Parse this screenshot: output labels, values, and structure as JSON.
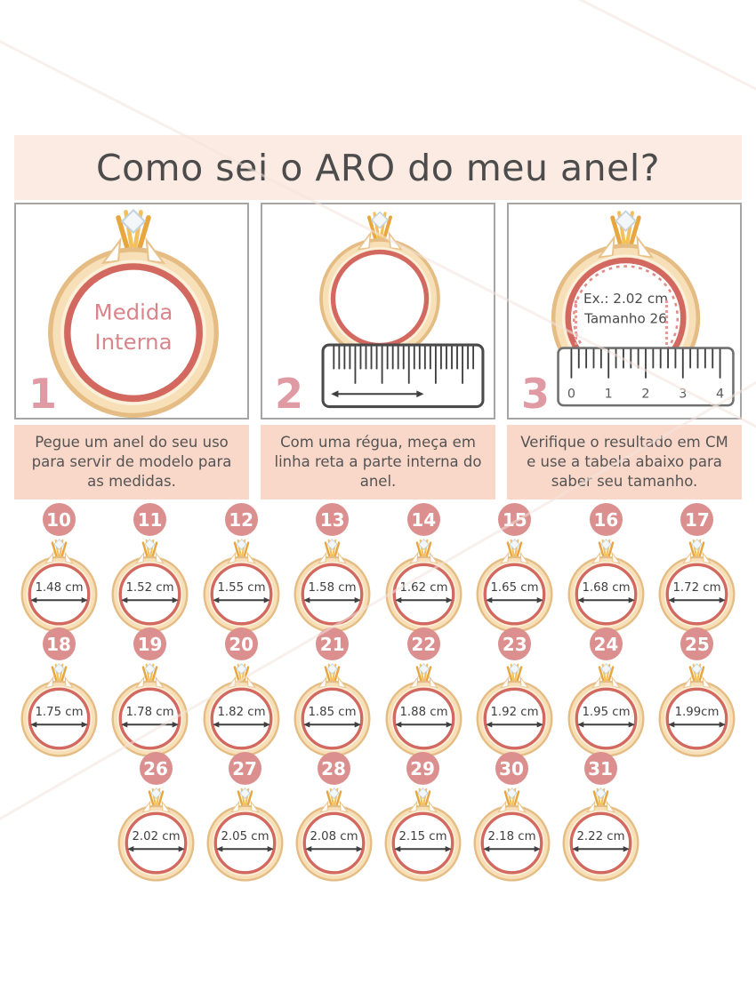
{
  "title": "Como sei o ARO do meu anel?",
  "steps": [
    {
      "number": "1",
      "ring_text_line1": "Medida",
      "ring_text_line2": "Interna",
      "caption": "Pegue um anel do seu uso para servir de modelo para as medidas."
    },
    {
      "number": "2",
      "caption": "Com uma régua, meça em linha reta a parte interna do anel."
    },
    {
      "number": "3",
      "example_line1": "Ex.: 2.02 cm",
      "example_line2": "Tamanho 26",
      "ruler_numbers": [
        "0",
        "1",
        "2",
        "3",
        "4"
      ],
      "caption": "Verifique o resultado em CM e use a tabela abaixo para saber seu tamanho."
    }
  ],
  "size_rows": [
    [
      {
        "size": "10",
        "measure": "1.48 cm"
      },
      {
        "size": "11",
        "measure": "1.52 cm"
      },
      {
        "size": "12",
        "measure": "1.55 cm"
      },
      {
        "size": "13",
        "measure": "1.58 cm"
      },
      {
        "size": "14",
        "measure": "1.62 cm"
      },
      {
        "size": "15",
        "measure": "1.65 cm"
      },
      {
        "size": "16",
        "measure": "1.68 cm"
      },
      {
        "size": "17",
        "measure": "1.72 cm"
      }
    ],
    [
      {
        "size": "18",
        "measure": "1.75 cm"
      },
      {
        "size": "19",
        "measure": "1.78 cm"
      },
      {
        "size": "20",
        "measure": "1.82 cm"
      },
      {
        "size": "21",
        "measure": "1.85 cm"
      },
      {
        "size": "22",
        "measure": "1.88 cm"
      },
      {
        "size": "23",
        "measure": "1.92 cm"
      },
      {
        "size": "24",
        "measure": "1.95 cm"
      },
      {
        "size": "25",
        "measure": "1.99cm"
      }
    ],
    [
      {
        "size": "26",
        "measure": "2.02 cm"
      },
      {
        "size": "27",
        "measure": "2.05 cm"
      },
      {
        "size": "28",
        "measure": "2.08 cm"
      },
      {
        "size": "29",
        "measure": "2.15 cm"
      },
      {
        "size": "30",
        "measure": "2.18 cm"
      },
      {
        "size": "31",
        "measure": "2.22 cm"
      }
    ]
  ],
  "colors": {
    "banner_bg": "#fcebe3",
    "caption_bg": "#f9d7c9",
    "badge_pink": "#dc8f8f",
    "step_number_pink": "#e09aa3",
    "ring_gold": "#f7dfb7",
    "ring_gold_edge": "#e5bc83",
    "ring_inner_rose": "#d2685f",
    "rose_text": "#d8858b",
    "title_text": "#4c4c4c",
    "body_text": "#545454"
  }
}
